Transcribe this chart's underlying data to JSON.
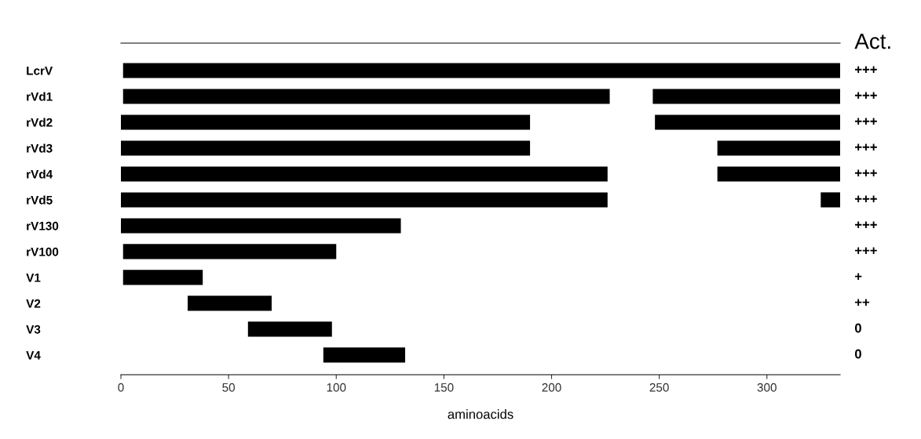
{
  "chart_data": {
    "type": "bar",
    "orientation": "horizontal",
    "xlabel": "aminoacids",
    "categories": [
      "LcrV",
      "rVd1",
      "rVd2",
      "rVd3",
      "rVd4",
      "rVd5",
      "rV130",
      "rV100",
      "V1",
      "V2",
      "V3",
      "V4"
    ],
    "series": [
      {
        "color": "#000000",
        "base": [
          1,
          1,
          0,
          0,
          0,
          0,
          0,
          1,
          1,
          31,
          59,
          94
        ],
        "values": [
          333,
          226,
          190,
          190,
          226,
          226,
          130,
          99,
          37,
          39,
          39,
          38
        ]
      },
      {
        "color": "#000000",
        "base": [
          null,
          247,
          248,
          277,
          277,
          325,
          null,
          null,
          null,
          null,
          null,
          null
        ],
        "values": [
          null,
          87,
          86,
          57,
          57,
          9,
          null,
          null,
          null,
          null,
          null,
          null
        ]
      }
    ],
    "xlim": [
      0,
      334
    ],
    "xticks": [
      0,
      50,
      100,
      150,
      200,
      250,
      300
    ],
    "grid": false,
    "legend": false,
    "annotations": [
      "Act.",
      "+++",
      "+++",
      "+++",
      "+++",
      "+++",
      "+++",
      "+++",
      "+++",
      "+",
      "++",
      "0",
      "0"
    ]
  }
}
